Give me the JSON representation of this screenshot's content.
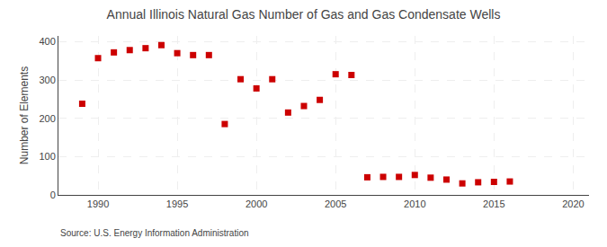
{
  "chart_data": {
    "type": "scatter",
    "title": "Annual Illinois Natural Gas Number of Gas and Gas Condensate Wells",
    "ylabel": "Number of Elements",
    "annotation": "Source: U.S. Energy Information Administration",
    "x": [
      1989,
      1990,
      1991,
      1992,
      1993,
      1994,
      1995,
      1996,
      1997,
      1998,
      1999,
      2000,
      2001,
      2002,
      2003,
      2004,
      2005,
      2006,
      2007,
      2008,
      2009,
      2010,
      2011,
      2012,
      2013,
      2014,
      2015,
      2016
    ],
    "values": [
      238,
      357,
      372,
      378,
      383,
      391,
      370,
      365,
      365,
      185,
      302,
      278,
      302,
      215,
      232,
      248,
      315,
      313,
      46,
      47,
      47,
      52,
      45,
      40,
      30,
      33,
      34,
      35
    ],
    "color": "#cc0000",
    "marker": "square",
    "xlim": [
      1987.5,
      2021
    ],
    "ylim": [
      0,
      415
    ],
    "xticks": [
      1990,
      1995,
      2000,
      2005,
      2010,
      2015,
      2020
    ],
    "yticks": [
      0,
      100,
      200,
      300,
      400
    ],
    "grid": true
  }
}
